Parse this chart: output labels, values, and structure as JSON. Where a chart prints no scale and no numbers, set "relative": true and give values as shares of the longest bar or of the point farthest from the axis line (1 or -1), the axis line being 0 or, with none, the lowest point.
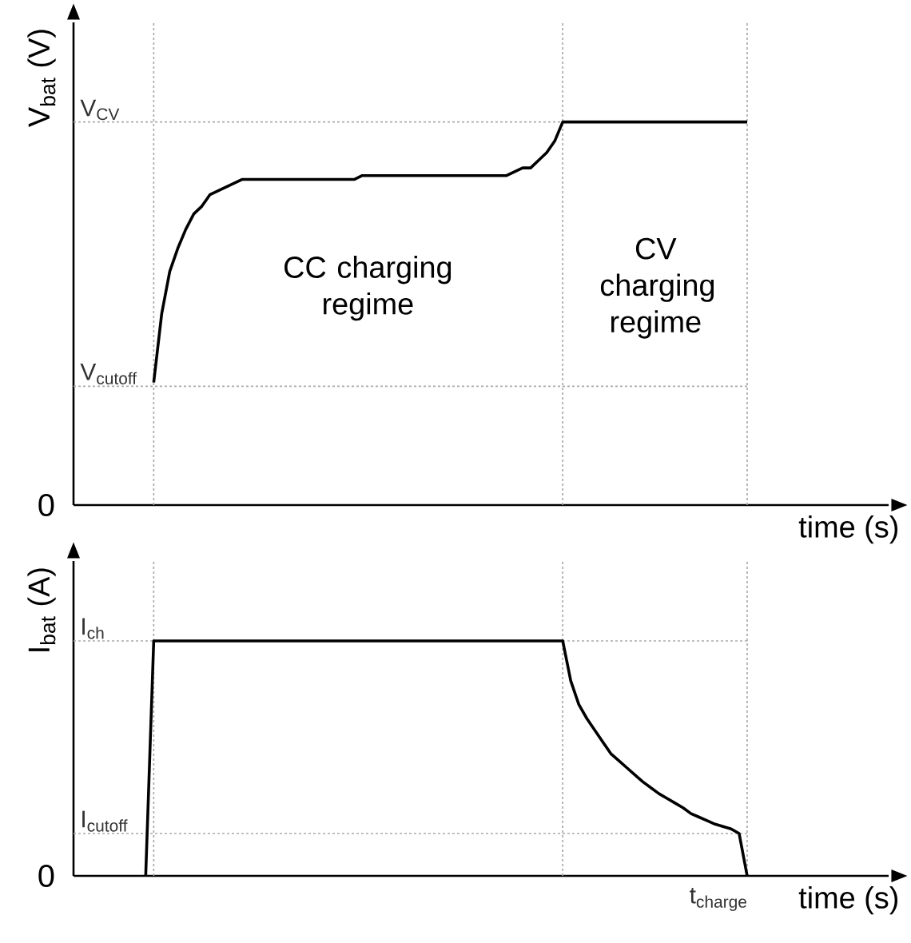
{
  "chart_data": [
    {
      "type": "line",
      "relative": true,
      "ylabel": "V$_{bat}$ (V)",
      "xlabel": "time (s)",
      "categories": [
        null,
        null,
        null,
        null,
        null,
        null,
        null,
        null,
        null,
        null,
        null,
        null,
        null,
        null,
        null,
        null,
        null,
        null,
        null,
        null,
        null,
        null,
        null,
        null,
        null,
        null,
        null,
        null,
        null,
        null,
        null,
        null,
        null,
        null,
        null,
        null,
        null,
        null,
        null,
        null,
        null,
        null,
        null,
        null,
        null,
        null,
        null,
        null,
        null,
        null,
        null,
        null,
        null,
        null,
        null,
        null,
        null,
        null,
        null,
        null,
        null,
        null,
        null,
        null,
        null,
        null,
        null,
        null,
        null,
        null,
        null,
        null,
        null,
        null,
        null,
        null,
        null,
        null,
        null,
        null,
        null,
        null,
        null,
        null,
        null
      ],
      "series": [
        {
          "color": "#000000",
          "values": [
            null,
            null,
            null,
            null,
            null,
            null,
            null,
            null,
            null,
            null,
            0.32,
            0.5,
            0.61,
            0.67,
            0.72,
            0.76,
            0.78,
            0.81,
            0.82,
            0.83,
            0.84,
            0.85,
            0.85,
            0.85,
            0.85,
            0.85,
            0.85,
            0.85,
            0.85,
            0.85,
            0.85,
            0.85,
            0.85,
            0.85,
            0.85,
            0.85,
            0.86,
            0.86,
            0.86,
            0.86,
            0.86,
            0.86,
            0.86,
            0.86,
            0.86,
            0.86,
            0.86,
            0.86,
            0.86,
            0.86,
            0.86,
            0.86,
            0.86,
            0.86,
            0.86,
            0.87,
            0.88,
            0.88,
            0.9,
            0.92,
            0.95,
            1,
            1,
            1,
            1,
            1,
            1,
            1,
            1,
            1,
            1,
            1,
            1,
            1,
            1,
            1,
            1,
            1,
            1,
            1,
            1,
            1,
            1,
            1,
            1
          ]
        }
      ],
      "ref_lines": [
        {
          "axis": "y",
          "value": 1,
          "label": "V$_{CV}$",
          "color": "#aaaaaa",
          "line_style": "dotted"
        },
        {
          "axis": "y",
          "value": 0.31,
          "label": "V$_{cutoff}$",
          "color": "#aaaaaa",
          "line_style": "dotted"
        }
      ],
      "annotations": [
        "0",
        "CC charging regime",
        "CV charging regime"
      ]
    },
    {
      "type": "line",
      "relative": true,
      "ylabel": "I$_{bat}$ (A)",
      "xlabel": "time (s)",
      "categories": [
        null,
        null,
        null,
        null,
        null,
        null,
        null,
        null,
        null,
        null,
        null,
        null,
        null,
        null,
        null,
        null,
        null,
        null,
        null,
        null,
        null,
        null,
        null,
        null,
        null,
        null,
        null,
        null,
        null,
        null,
        null,
        null,
        null,
        null,
        null,
        null,
        null,
        null,
        null,
        null,
        null,
        null,
        null,
        null,
        null,
        null,
        null,
        null,
        null,
        null,
        null,
        null,
        null,
        null,
        null,
        null,
        null,
        null,
        null,
        null,
        null,
        null,
        null,
        null,
        null,
        null,
        null,
        null,
        null,
        null,
        null,
        null,
        null,
        null,
        null,
        null,
        null,
        null,
        null,
        null,
        null,
        null,
        null,
        null,
        null
      ],
      "series": [
        {
          "color": "#000000",
          "values": [
            null,
            null,
            null,
            null,
            null,
            null,
            null,
            null,
            null,
            0,
            1,
            1,
            1,
            1,
            1,
            1,
            1,
            1,
            1,
            1,
            1,
            1,
            1,
            1,
            1,
            1,
            1,
            1,
            1,
            1,
            1,
            1,
            1,
            1,
            1,
            1,
            1,
            1,
            1,
            1,
            1,
            1,
            1,
            1,
            1,
            1,
            1,
            1,
            1,
            1,
            1,
            1,
            1,
            1,
            1,
            1,
            1,
            1,
            1,
            1,
            1,
            1,
            0.83,
            0.73,
            0.67,
            0.62,
            0.57,
            0.52,
            0.49,
            0.46,
            0.43,
            0.4,
            0.375,
            0.35,
            0.33,
            0.31,
            0.29,
            0.265,
            0.25,
            0.235,
            0.22,
            0.21,
            0.2,
            0.18,
            0
          ]
        }
      ],
      "ref_lines": [
        {
          "axis": "y",
          "value": 1,
          "label": "I$_{ch}$",
          "color": "#aaaaaa",
          "line_style": "dotted"
        },
        {
          "axis": "y",
          "value": 0.18,
          "label": "I$_{cutoff}$",
          "color": "#aaaaaa",
          "line_style": "dotted"
        }
      ],
      "annotations": [
        "0",
        "t$_{charge}$"
      ]
    }
  ]
}
